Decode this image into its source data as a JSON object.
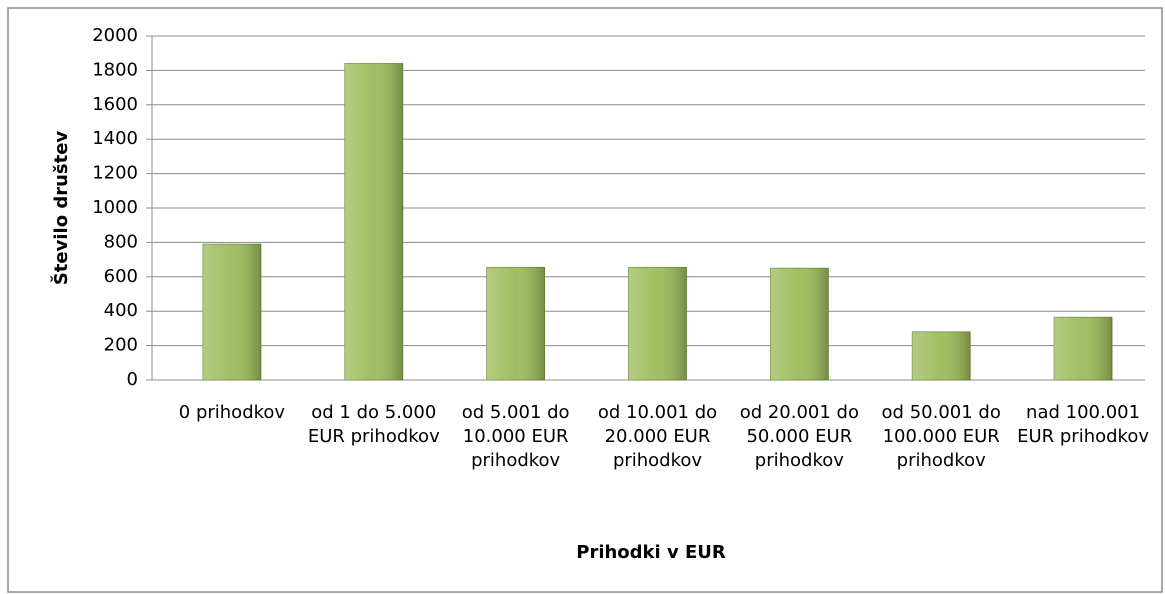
{
  "chart_data": {
    "type": "bar",
    "x_label": "Prihodki v EUR",
    "y_label": "Število društev",
    "categories": [
      "0 prihodkov",
      "od 1 do 5.000 EUR prihodkov",
      "od 5.001 do 10.000 EUR prihodkov",
      "od 10.001 do 20.000 EUR prihodkov",
      "od 20.001 do 50.000 EUR prihodkov",
      "od 50.001 do 100.000 EUR prihodkov",
      "nad 100.001 EUR prihodkov"
    ],
    "values": [
      790,
      1840,
      655,
      655,
      650,
      280,
      365
    ],
    "color": "#9bbb59",
    "ylim": [
      0,
      2000
    ],
    "yticks": [
      0,
      200,
      400,
      600,
      800,
      1000,
      1200,
      1400,
      1600,
      1800,
      2000
    ],
    "grid": true
  }
}
